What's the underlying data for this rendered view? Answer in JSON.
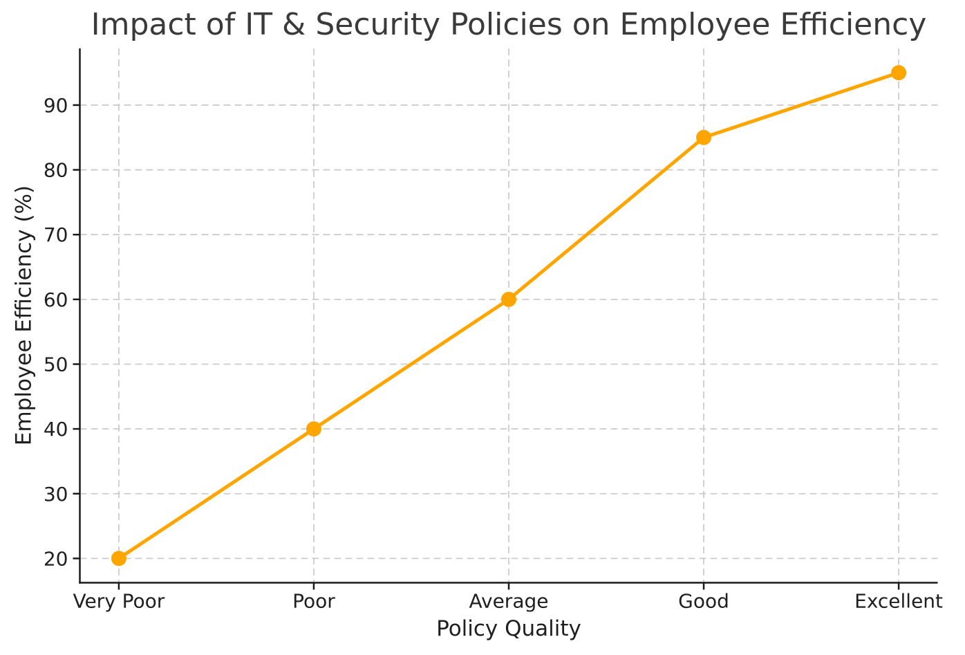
{
  "chart_data": {
    "type": "line",
    "title": "Impact of IT & Security Policies on Employee Efficiency",
    "xlabel": "Policy Quality",
    "ylabel": "Employee Efficiency (%)",
    "categories": [
      "Very Poor",
      "Poor",
      "Average",
      "Good",
      "Excellent"
    ],
    "series": [
      {
        "name": "Employee Efficiency",
        "values": [
          20,
          40,
          60,
          85,
          95
        ]
      }
    ],
    "yticks": [
      20,
      30,
      40,
      50,
      60,
      70,
      80,
      90
    ],
    "ylim": [
      16.25,
      98.75
    ],
    "grid": true,
    "grid_style": "dashed",
    "legend_position": "none",
    "colors": {
      "line": "#FFA500",
      "marker": "#FFA500",
      "grid": "#cccccc",
      "spine": "#1a1a1a",
      "tick_text": "#1f1f1f",
      "title_text": "#3a3a3a",
      "background": "#ffffff"
    }
  }
}
